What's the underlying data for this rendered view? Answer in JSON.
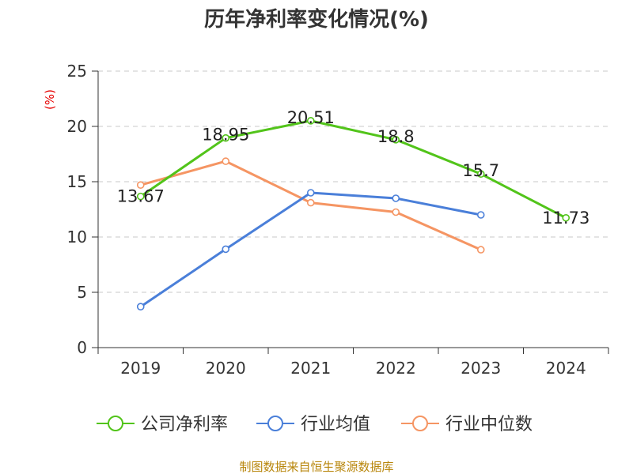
{
  "chart_data": {
    "type": "line",
    "title": "历年净利率变化情况(%)",
    "unit": "(%)",
    "categories": [
      "2019",
      "2020",
      "2021",
      "2022",
      "2023",
      "2024"
    ],
    "ylim": [
      0,
      25
    ],
    "yticks": [
      0,
      5,
      10,
      15,
      20,
      25
    ],
    "grid": true,
    "legend_position": "bottom",
    "series": [
      {
        "name": "公司净利率",
        "color": "#52c41a",
        "values": [
          13.67,
          18.95,
          20.51,
          18.8,
          15.7,
          11.73
        ],
        "show_labels": true
      },
      {
        "name": "行业均值",
        "color": "#4a7fd9",
        "values": [
          3.7,
          8.9,
          14.0,
          13.5,
          12.0,
          null
        ],
        "show_labels": false
      },
      {
        "name": "行业中位数",
        "color": "#f59563",
        "values": [
          14.7,
          16.85,
          13.1,
          12.25,
          8.85,
          null
        ],
        "show_labels": false
      }
    ],
    "source": "制图数据来自恒生聚源数据库"
  }
}
